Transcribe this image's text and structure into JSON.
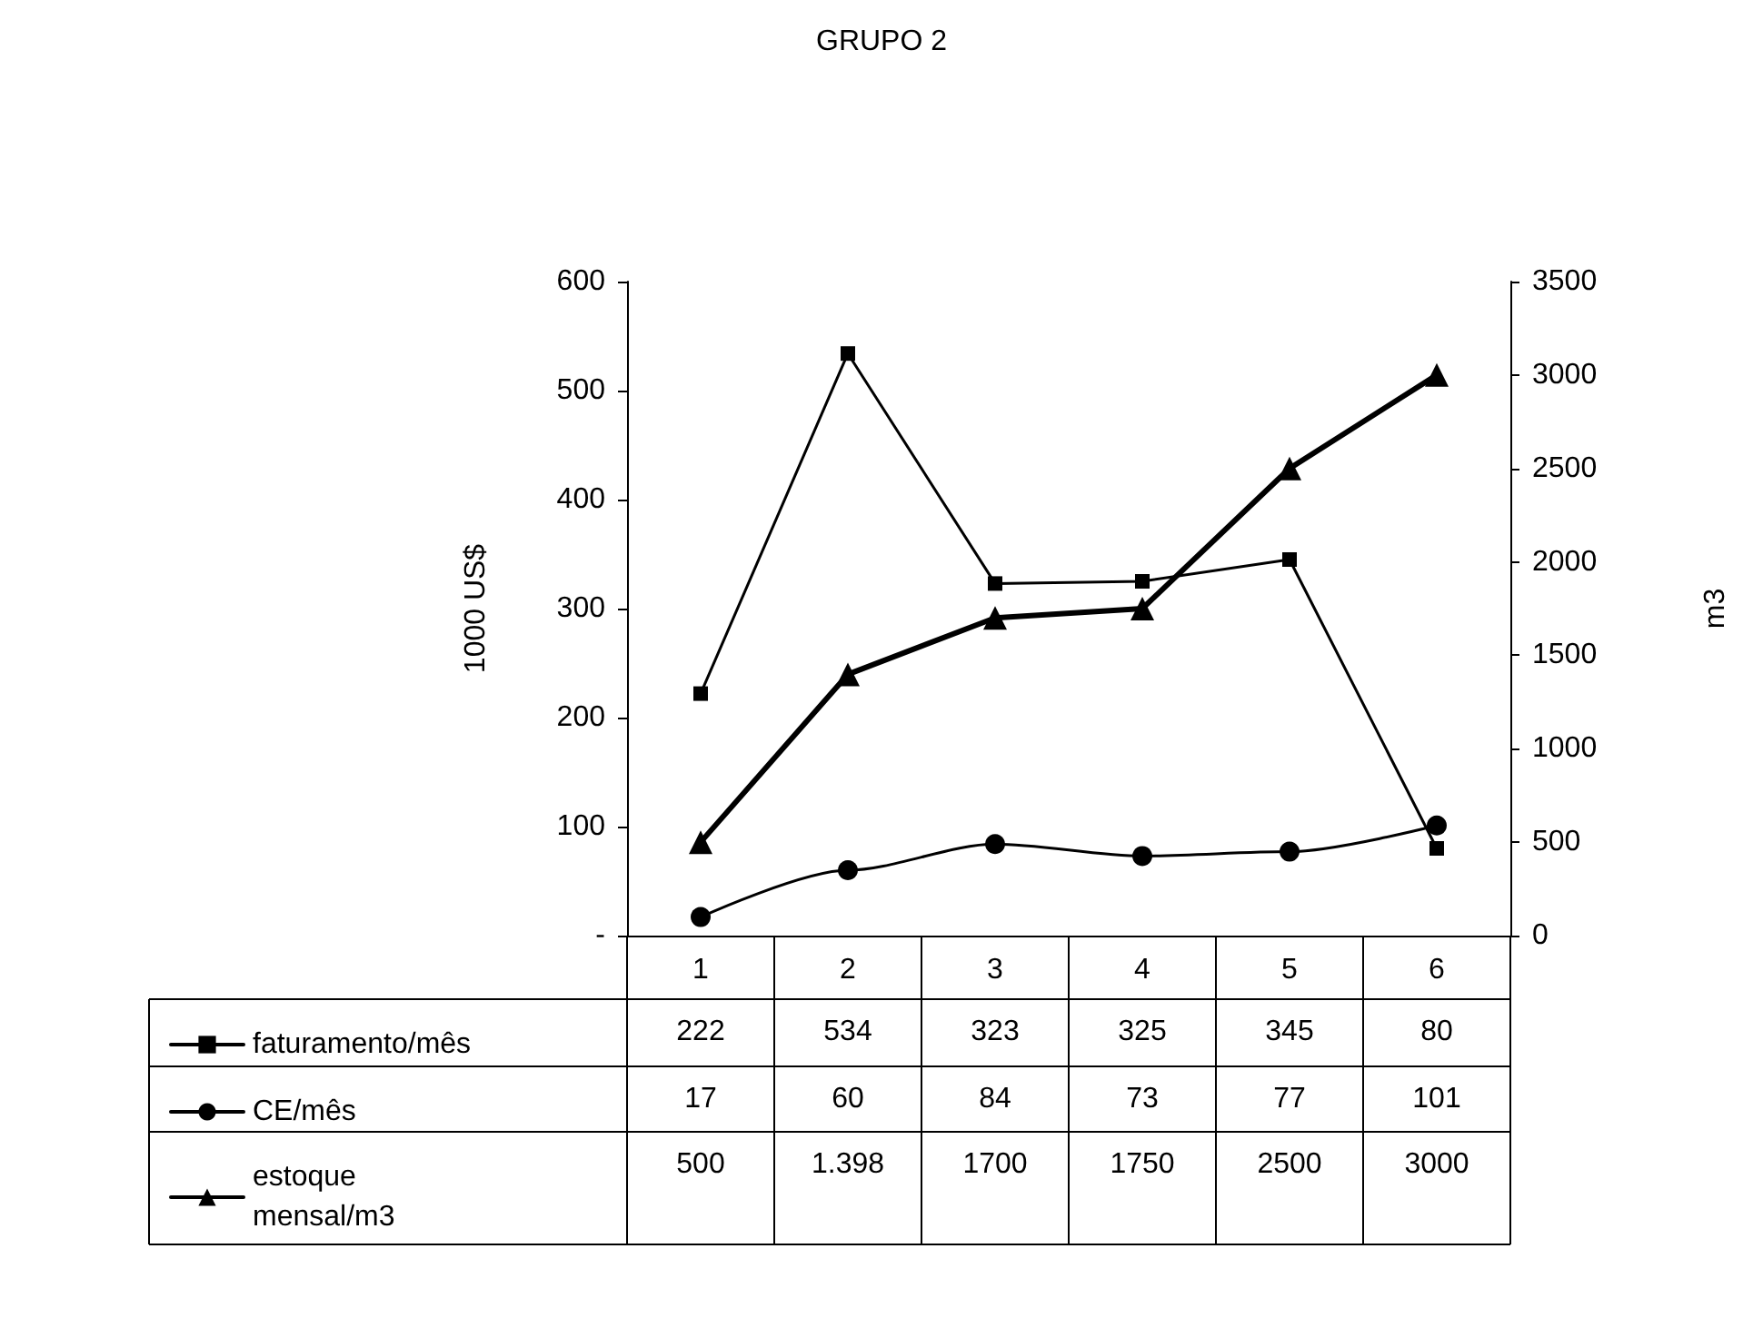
{
  "chart_data": {
    "type": "line",
    "title": "GRUPO 2",
    "ylabel": "1000 US$",
    "y2label": "m3",
    "categories": [
      "1",
      "2",
      "3",
      "4",
      "5",
      "6"
    ],
    "series": [
      {
        "name": "faturamento/mês",
        "color": "#000000",
        "marker": "square",
        "values": [
          222,
          534,
          323,
          325,
          345,
          80
        ],
        "value_labels": [
          "222",
          "534",
          "323",
          "325",
          "345",
          "80"
        ]
      },
      {
        "name": "CE/mês",
        "color": "#000000",
        "marker": "circle",
        "values": [
          17,
          60,
          84,
          73,
          77,
          101
        ],
        "value_labels": [
          "17",
          "60",
          "84",
          "73",
          "77",
          "101"
        ]
      },
      {
        "name": "estoque mensal/m3",
        "color": "#000000",
        "marker": "triangle",
        "axis": "y2",
        "values": [
          500,
          1398,
          1700,
          1750,
          2500,
          3000
        ],
        "value_labels": [
          "500",
          "1.398",
          "1700",
          "1750",
          "2500",
          "3000"
        ]
      }
    ],
    "ylim": [
      0,
      600
    ],
    "yticks": [
      {
        "value": 0,
        "label": "-"
      },
      100,
      200,
      300,
      400,
      500,
      600
    ],
    "y2lim": [
      0,
      3500
    ],
    "y2ticks": [
      0,
      500,
      1000,
      1500,
      2000,
      2500,
      3000,
      3500
    ],
    "grid": false,
    "legend": "bottom"
  }
}
